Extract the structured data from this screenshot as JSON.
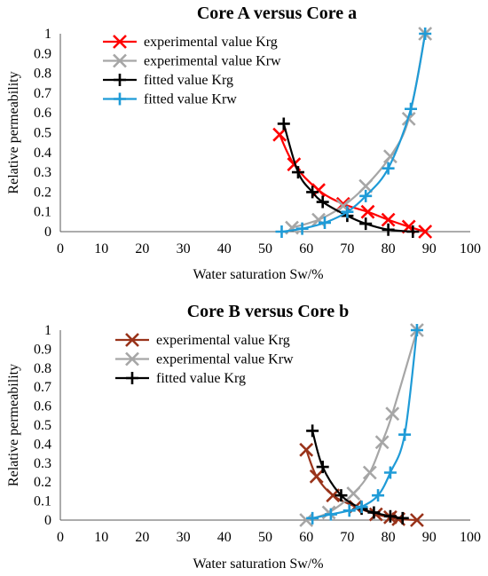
{
  "chart_data": [
    {
      "type": "line",
      "title": "Core A versus Core a",
      "xlabel": "Water saturation Sw/%",
      "ylabel": "Relative permeability",
      "xlim": [
        0,
        100
      ],
      "ylim": [
        0,
        1
      ],
      "xticks": [
        "0",
        "10",
        "20",
        "30",
        "40",
        "50",
        "60",
        "70",
        "80",
        "90",
        "100"
      ],
      "yticks": [
        "0",
        "0.1",
        "0.2",
        "0.3",
        "0.4",
        "0.5",
        "0.6",
        "0.7",
        "0.8",
        "0.9",
        "1"
      ],
      "grid": false,
      "legend_position": "top-left",
      "series": [
        {
          "name": "experimental value Krg",
          "color": "#ff0000",
          "marker": "x",
          "x": [
            53.5,
            57,
            63,
            69,
            75,
            80,
            85,
            89
          ],
          "y": [
            0.49,
            0.34,
            0.21,
            0.14,
            0.1,
            0.06,
            0.025,
            0.0
          ]
        },
        {
          "name": "experimental value Krw",
          "color": "#a6a6a6",
          "marker": "x",
          "x": [
            56.5,
            63,
            69,
            74.5,
            80.5,
            85,
            89
          ],
          "y": [
            0.02,
            0.06,
            0.13,
            0.23,
            0.38,
            0.57,
            1.0
          ]
        },
        {
          "name": "fitted value Krg",
          "color": "#000000",
          "marker": "+",
          "x": [
            54.5,
            58,
            61.5,
            64,
            70,
            74.5,
            80,
            86
          ],
          "y": [
            0.545,
            0.3,
            0.2,
            0.15,
            0.08,
            0.04,
            0.01,
            0.0
          ]
        },
        {
          "name": "fitted value Krw",
          "color": "#1f9bd7",
          "marker": "+",
          "x": [
            54,
            59,
            64.5,
            70,
            74.5,
            80,
            85.5,
            89
          ],
          "y": [
            0.0,
            0.015,
            0.045,
            0.1,
            0.18,
            0.32,
            0.62,
            1.0
          ]
        }
      ]
    },
    {
      "type": "line",
      "title": "Core B versus Core b",
      "xlabel": "Water saturation Sw/%",
      "ylabel": "Relative permeability",
      "xlim": [
        0,
        100
      ],
      "ylim": [
        0,
        1
      ],
      "xticks": [
        "0",
        "10",
        "20",
        "30",
        "40",
        "50",
        "60",
        "70",
        "80",
        "90",
        "100"
      ],
      "yticks": [
        "0",
        "0.1",
        "0.2",
        "0.3",
        "0.4",
        "0.5",
        "0.6",
        "0.7",
        "0.8",
        "0.9",
        "1"
      ],
      "grid": false,
      "legend_position": "top-left",
      "series": [
        {
          "name": "experimental value Krg",
          "color": "#99331a",
          "marker": "x",
          "x": [
            60,
            62.5,
            66.5,
            72,
            77,
            80.5,
            82.5,
            87
          ],
          "y": [
            0.37,
            0.23,
            0.13,
            0.07,
            0.03,
            0.015,
            0.005,
            0.0
          ]
        },
        {
          "name": "experimental value Krw",
          "color": "#a6a6a6",
          "marker": "x",
          "x": [
            60,
            65.5,
            71.5,
            75.5,
            78.5,
            81,
            87
          ],
          "y": [
            0.0,
            0.04,
            0.14,
            0.25,
            0.41,
            0.56,
            1.0
          ]
        },
        {
          "name": "fitted value Krg",
          "color": "#000000",
          "marker": "+",
          "x": [
            61.5,
            64,
            68.5,
            73.5,
            76.5,
            80.5,
            83.5
          ],
          "y": [
            0.47,
            0.28,
            0.13,
            0.06,
            0.04,
            0.02,
            0.01
          ]
        },
        {
          "name": "",
          "color": "#1f9bd7",
          "marker": "+",
          "x": [
            61.5,
            66,
            70.5,
            73.5,
            77.5,
            80.5,
            84,
            87
          ],
          "y": [
            0.01,
            0.03,
            0.05,
            0.07,
            0.13,
            0.25,
            0.45,
            1.0
          ]
        }
      ]
    }
  ]
}
